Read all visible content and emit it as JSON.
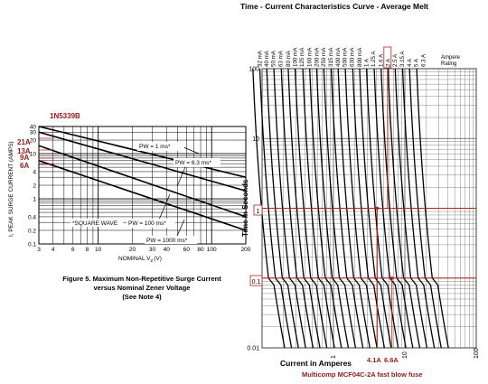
{
  "left_chart": {
    "part_number": "1N5339B",
    "y_axis_label": "I, PEAK SURGE CURRENT (AMPS)",
    "x_axis_label": "NOMINAL V",
    "x_axis_label_sub": "Z",
    "x_axis_label_unit": "(V)",
    "y_ticks": [
      "40",
      "30",
      "20",
      "10",
      "4",
      "2",
      "1",
      "0.4",
      "0.2",
      "0.1"
    ],
    "x_ticks": [
      "3",
      "4",
      "6",
      "8",
      "10",
      "20",
      "30",
      "40",
      "60",
      "80",
      "100",
      "200"
    ],
    "red_labels": [
      "21A",
      "13A",
      "9A",
      "6A"
    ],
    "square_wave_note": "*SQUARE WAVE",
    "pw_labels": [
      "PW = 1 ms*",
      "PW = 8.3 ms*",
      "PW = 100 ms*",
      "PW = 1000 ms*"
    ],
    "caption_lines": [
      "Figure 5. Maximum Non-Repetitive Surge Current",
      "versus Nominal Zener Voltage",
      "(See Note 4)"
    ]
  },
  "right_chart": {
    "title": "Time - Current Characteristics Curve - Average Melt",
    "y_axis_label": "Time in Seconds",
    "x_axis_label": "Current in Amperes",
    "y_ticks": [
      "100",
      "10",
      "1",
      "0.1",
      "0.01"
    ],
    "x_ticks": [
      "1",
      "10",
      "100"
    ],
    "rating_labels": [
      "32 mA",
      "40 mA",
      "50 mA",
      "63 mA",
      "80 mA",
      "100 mA",
      "125 mA",
      "160 mA",
      "200 mA",
      "250 mA",
      "315 mA",
      "400 mA",
      "500 mA",
      "630 mA",
      "800 mA",
      "1 A",
      "1.25 A",
      "1.6 A",
      "2 A",
      "2.5 A",
      "3.15 A",
      "4 A",
      "5 A",
      "6.3 A"
    ],
    "ampere_rating_label": "Ampere\nRating",
    "boxed_time_labels": [
      "1",
      "0.1"
    ],
    "red_current_labels": [
      "4.1A",
      "6.6A"
    ],
    "footer_note": "Multicomp MCF04C-2A fast blow fuse"
  },
  "chart_data": [
    {
      "type": "line",
      "title": "Figure 5. Maximum Non-Repetitive Surge Current versus Nominal Zener Voltage",
      "xlabel": "NOMINAL VZ (V)",
      "ylabel": "I, PEAK SURGE CURRENT (AMPS)",
      "xscale": "log",
      "yscale": "log",
      "xlim": [
        3,
        200
      ],
      "ylim": [
        0.1,
        40
      ],
      "grid": true,
      "series": [
        {
          "name": "PW = 1 ms*",
          "x": [
            3,
            200
          ],
          "y": [
            40,
            3
          ]
        },
        {
          "name": "PW = 8.3 ms*",
          "x": [
            3,
            200
          ],
          "y": [
            30,
            1.5
          ]
        },
        {
          "name": "PW = 100 ms*",
          "x": [
            3,
            200
          ],
          "y": [
            15,
            0.4
          ]
        },
        {
          "name": "PW = 1000 ms*",
          "x": [
            3,
            200
          ],
          "y": [
            7,
            0.2
          ]
        }
      ],
      "annotations": [
        "21A",
        "13A",
        "9A",
        "6A",
        "*SQUARE WAVE"
      ]
    },
    {
      "type": "line",
      "title": "Time - Current Characteristics Curve - Average Melt",
      "xlabel": "Current in Amperes",
      "ylabel": "Time in Seconds",
      "xscale": "log",
      "yscale": "log",
      "xlim": [
        0.1,
        100
      ],
      "ylim": [
        0.01,
        100
      ],
      "grid": true,
      "series_names": [
        "32 mA",
        "40 mA",
        "50 mA",
        "63 mA",
        "80 mA",
        "100 mA",
        "125 mA",
        "160 mA",
        "200 mA",
        "250 mA",
        "315 mA",
        "400 mA",
        "500 mA",
        "630 mA",
        "800 mA",
        "1 A",
        "1.25 A",
        "1.6 A",
        "2 A",
        "2.5 A",
        "3.15 A",
        "4 A",
        "5 A",
        "6.3 A"
      ],
      "annotations": [
        {
          "label": "2A",
          "current_A": 4.1,
          "time_s": 1
        },
        {
          "label": "2A",
          "current_A": 6.6,
          "time_s": 0.1
        }
      ]
    }
  ]
}
